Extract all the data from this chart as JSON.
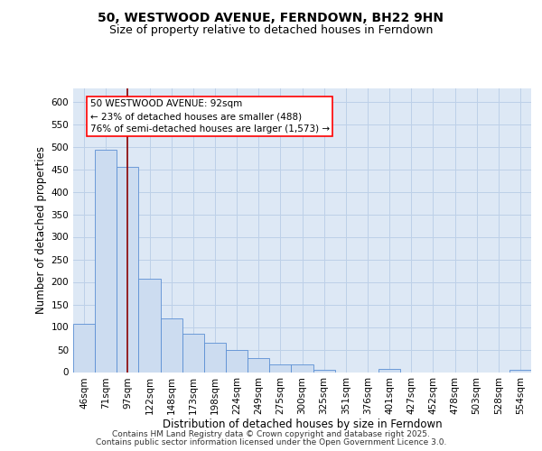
{
  "title1": "50, WESTWOOD AVENUE, FERNDOWN, BH22 9HN",
  "title2": "Size of property relative to detached houses in Ferndown",
  "xlabel": "Distribution of detached houses by size in Ferndown",
  "ylabel": "Number of detached properties",
  "bar_color": "#ccdcf0",
  "bar_edge_color": "#5b8fd4",
  "plot_bg_color": "#dde8f5",
  "categories": [
    "46sqm",
    "71sqm",
    "97sqm",
    "122sqm",
    "148sqm",
    "173sqm",
    "198sqm",
    "224sqm",
    "249sqm",
    "275sqm",
    "300sqm",
    "325sqm",
    "351sqm",
    "376sqm",
    "401sqm",
    "427sqm",
    "452sqm",
    "478sqm",
    "503sqm",
    "528sqm",
    "554sqm"
  ],
  "values": [
    107,
    493,
    455,
    207,
    120,
    85,
    65,
    50,
    32,
    17,
    17,
    5,
    0,
    0,
    8,
    0,
    0,
    0,
    0,
    0,
    5
  ],
  "property_line_x": 2.0,
  "property_line_color": "#8b0000",
  "annotation_text": "50 WESTWOOD AVENUE: 92sqm\n← 23% of detached houses are smaller (488)\n76% of semi-detached houses are larger (1,573) →",
  "ylim": [
    0,
    630
  ],
  "yticks": [
    0,
    50,
    100,
    150,
    200,
    250,
    300,
    350,
    400,
    450,
    500,
    550,
    600
  ],
  "footer_text1": "Contains HM Land Registry data © Crown copyright and database right 2025.",
  "footer_text2": "Contains public sector information licensed under the Open Government Licence 3.0.",
  "grid_color": "#bdd0e8",
  "title1_fontsize": 10,
  "title2_fontsize": 9,
  "xlabel_fontsize": 8.5,
  "ylabel_fontsize": 8.5,
  "tick_fontsize": 7.5,
  "annotation_fontsize": 7.5,
  "footer_fontsize": 6.5
}
